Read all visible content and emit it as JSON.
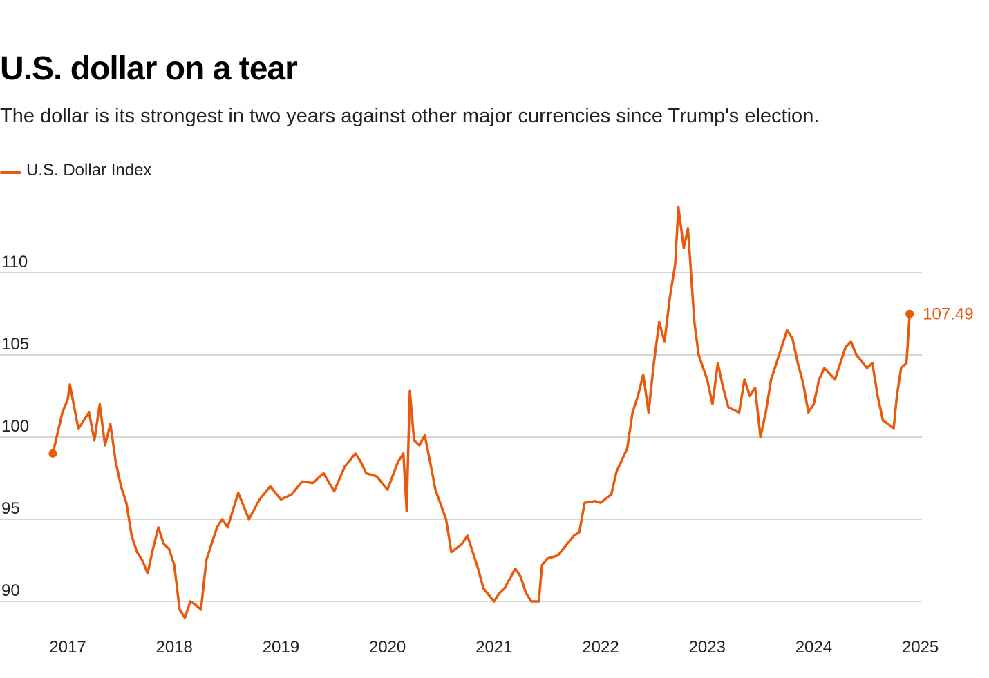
{
  "chart_data": {
    "type": "line",
    "title": "U.S. dollar on a tear",
    "subtitle": "The dollar is its strongest in two years against other major currencies since Trump's election.",
    "xlabel": "",
    "ylabel": "",
    "xlim": [
      2016.86,
      2024.9
    ],
    "ylim": [
      88.5,
      114.5
    ],
    "grid": true,
    "legend_position": "top-left",
    "x_ticks": [
      "2017",
      "2018",
      "2019",
      "2020",
      "2021",
      "2022",
      "2023",
      "2024",
      "2025"
    ],
    "y_ticks": [
      "90",
      "95",
      "100",
      "105",
      "110"
    ],
    "end_label": "107.49",
    "color": "#e8590c",
    "series": [
      {
        "name": "U.S. Dollar Index",
        "x": [
          2016.86,
          2016.95,
          2017.0,
          2017.02,
          2017.1,
          2017.2,
          2017.25,
          2017.3,
          2017.35,
          2017.4,
          2017.45,
          2017.5,
          2017.55,
          2017.6,
          2017.65,
          2017.7,
          2017.75,
          2017.8,
          2017.85,
          2017.9,
          2017.95,
          2018.0,
          2018.05,
          2018.1,
          2018.15,
          2018.2,
          2018.25,
          2018.3,
          2018.35,
          2018.4,
          2018.45,
          2018.5,
          2018.6,
          2018.7,
          2018.8,
          2018.9,
          2019.0,
          2019.1,
          2019.2,
          2019.3,
          2019.4,
          2019.5,
          2019.6,
          2019.7,
          2019.75,
          2019.8,
          2019.9,
          2020.0,
          2020.1,
          2020.15,
          2020.18,
          2020.21,
          2020.25,
          2020.3,
          2020.35,
          2020.4,
          2020.45,
          2020.55,
          2020.6,
          2020.7,
          2020.75,
          2020.8,
          2020.85,
          2020.9,
          2021.0,
          2021.05,
          2021.1,
          2021.2,
          2021.25,
          2021.3,
          2021.35,
          2021.42,
          2021.45,
          2021.5,
          2021.6,
          2021.65,
          2021.75,
          2021.8,
          2021.85,
          2021.95,
          2022.0,
          2022.1,
          2022.15,
          2022.2,
          2022.25,
          2022.3,
          2022.35,
          2022.4,
          2022.45,
          2022.5,
          2022.55,
          2022.6,
          2022.65,
          2022.7,
          2022.73,
          2022.78,
          2022.82,
          2022.88,
          2022.92,
          2023.0,
          2023.05,
          2023.1,
          2023.15,
          2023.2,
          2023.3,
          2023.35,
          2023.4,
          2023.45,
          2023.5,
          2023.55,
          2023.6,
          2023.7,
          2023.75,
          2023.8,
          2023.85,
          2023.9,
          2023.95,
          2024.0,
          2024.05,
          2024.1,
          2024.2,
          2024.25,
          2024.3,
          2024.35,
          2024.4,
          2024.5,
          2024.55,
          2024.6,
          2024.65,
          2024.7,
          2024.75,
          2024.78,
          2024.82,
          2024.87,
          2024.9
        ],
        "values": [
          99.0,
          101.5,
          102.3,
          103.2,
          100.5,
          101.5,
          99.8,
          102.0,
          99.5,
          100.8,
          98.5,
          97.0,
          96.0,
          94.0,
          93.0,
          92.5,
          91.7,
          93.2,
          94.5,
          93.5,
          93.2,
          92.2,
          89.5,
          89.0,
          90.0,
          89.8,
          89.5,
          92.5,
          93.5,
          94.5,
          95.0,
          94.5,
          96.6,
          95.0,
          96.2,
          97.0,
          96.2,
          96.5,
          97.3,
          97.2,
          97.8,
          96.7,
          98.2,
          99.0,
          98.5,
          97.8,
          97.6,
          96.8,
          98.5,
          99.0,
          95.5,
          102.8,
          99.8,
          99.5,
          100.1,
          98.5,
          96.8,
          95.0,
          93.0,
          93.5,
          94.0,
          93.0,
          92.0,
          90.8,
          90.0,
          90.5,
          90.8,
          92.0,
          91.5,
          90.5,
          90.0,
          90.0,
          92.2,
          92.6,
          92.8,
          93.2,
          94.0,
          94.2,
          96.0,
          96.1,
          96.0,
          96.5,
          97.9,
          98.6,
          99.3,
          101.5,
          102.5,
          103.8,
          101.5,
          104.5,
          107.0,
          105.8,
          108.5,
          110.5,
          114.0,
          111.5,
          112.7,
          107.0,
          105.0,
          103.5,
          102.0,
          104.5,
          103.0,
          101.8,
          101.5,
          103.5,
          102.5,
          103.0,
          100.0,
          101.5,
          103.5,
          105.5,
          106.5,
          106.0,
          104.5,
          103.3,
          101.5,
          102.0,
          103.5,
          104.2,
          103.5,
          104.5,
          105.5,
          105.8,
          105.0,
          104.2,
          104.5,
          102.5,
          101.0,
          100.8,
          100.5,
          102.5,
          104.2,
          104.5,
          107.49
        ]
      }
    ]
  }
}
